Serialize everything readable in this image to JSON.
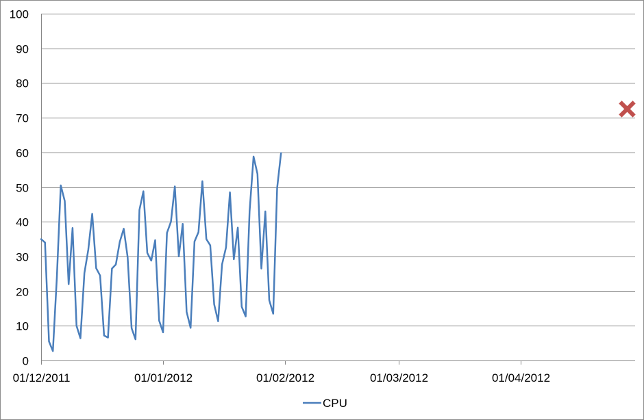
{
  "chart_data": {
    "type": "line",
    "title": "",
    "xlabel": "",
    "ylabel": "",
    "ylim": [
      0,
      100
    ],
    "yticks": [
      0,
      10,
      20,
      30,
      40,
      50,
      60,
      70,
      80,
      90,
      100
    ],
    "xlim": [
      "2011-12-01",
      "2012-04-30"
    ],
    "xticks": [
      {
        "date": "2011-12-01",
        "label": "01/12/2011"
      },
      {
        "date": "2012-01-01",
        "label": "01/01/2012"
      },
      {
        "date": "2012-02-01",
        "label": "01/02/2012"
      },
      {
        "date": "2012-03-01",
        "label": "01/03/2012"
      },
      {
        "date": "2012-04-01",
        "label": "01/04/2012"
      }
    ],
    "grid": "horizontal",
    "legend_position": "bottom",
    "series": [
      {
        "name": "CPU",
        "color": "#4a7ebb",
        "points": [
          [
            "2011-12-01",
            35
          ],
          [
            "2011-12-02",
            34
          ],
          [
            "2011-12-03",
            5.5
          ],
          [
            "2011-12-04",
            2.7
          ],
          [
            "2011-12-05",
            24
          ],
          [
            "2011-12-06",
            50.5
          ],
          [
            "2011-12-07",
            46
          ],
          [
            "2011-12-08",
            22
          ],
          [
            "2011-12-09",
            38.2
          ],
          [
            "2011-12-10",
            10
          ],
          [
            "2011-12-11",
            6.4
          ],
          [
            "2011-12-12",
            25.2
          ],
          [
            "2011-12-13",
            32
          ],
          [
            "2011-12-14",
            42.3
          ],
          [
            "2011-12-15",
            26.6
          ],
          [
            "2011-12-16",
            24.5
          ],
          [
            "2011-12-17",
            7.2
          ],
          [
            "2011-12-18",
            6.6
          ],
          [
            "2011-12-19",
            26.5
          ],
          [
            "2011-12-20",
            27.7
          ],
          [
            "2011-12-21",
            34.2
          ],
          [
            "2011-12-22",
            38
          ],
          [
            "2011-12-23",
            29.8
          ],
          [
            "2011-12-24",
            9.3
          ],
          [
            "2011-12-25",
            6.1
          ],
          [
            "2011-12-26",
            43.4
          ],
          [
            "2011-12-27",
            48.8
          ],
          [
            "2011-12-28",
            31
          ],
          [
            "2011-12-29",
            28.8
          ],
          [
            "2011-12-30",
            34.7
          ],
          [
            "2011-12-31",
            11.5
          ],
          [
            "2012-01-01",
            8.1
          ],
          [
            "2012-01-02",
            36.8
          ],
          [
            "2012-01-03",
            40
          ],
          [
            "2012-01-04",
            50.2
          ],
          [
            "2012-01-05",
            30
          ],
          [
            "2012-01-06",
            39.4
          ],
          [
            "2012-01-07",
            14
          ],
          [
            "2012-01-08",
            9.4
          ],
          [
            "2012-01-09",
            34.3
          ],
          [
            "2012-01-10",
            37
          ],
          [
            "2012-01-11",
            51.7
          ],
          [
            "2012-01-12",
            35
          ],
          [
            "2012-01-13",
            33.2
          ],
          [
            "2012-01-14",
            16.2
          ],
          [
            "2012-01-15",
            11.3
          ],
          [
            "2012-01-16",
            27.7
          ],
          [
            "2012-01-17",
            32.6
          ],
          [
            "2012-01-18",
            48.5
          ],
          [
            "2012-01-19",
            29.2
          ],
          [
            "2012-01-20",
            38.3
          ],
          [
            "2012-01-21",
            15.5
          ],
          [
            "2012-01-22",
            12.7
          ],
          [
            "2012-01-23",
            43
          ],
          [
            "2012-01-24",
            58.8
          ],
          [
            "2012-01-25",
            53.8
          ],
          [
            "2012-01-26",
            26.5
          ],
          [
            "2012-01-27",
            43
          ],
          [
            "2012-01-28",
            17.4
          ],
          [
            "2012-01-29",
            13.5
          ],
          [
            "2012-01-30",
            49.7
          ],
          [
            "2012-01-31",
            59.8
          ]
        ]
      },
      {
        "name": "",
        "color": "#c0504d",
        "marker": "x",
        "points": [
          [
            "2012-04-28",
            72.5
          ]
        ]
      }
    ]
  }
}
